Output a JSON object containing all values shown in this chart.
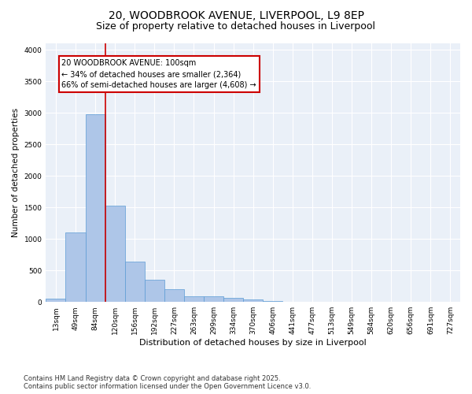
{
  "title": "20, WOODBROOK AVENUE, LIVERPOOL, L9 8EP",
  "subtitle": "Size of property relative to detached houses in Liverpool",
  "xlabel": "Distribution of detached houses by size in Liverpool",
  "ylabel": "Number of detached properties",
  "categories": [
    "13sqm",
    "49sqm",
    "84sqm",
    "120sqm",
    "156sqm",
    "192sqm",
    "227sqm",
    "263sqm",
    "299sqm",
    "334sqm",
    "370sqm",
    "406sqm",
    "441sqm",
    "477sqm",
    "513sqm",
    "549sqm",
    "584sqm",
    "620sqm",
    "656sqm",
    "691sqm",
    "727sqm"
  ],
  "values": [
    55,
    1100,
    2980,
    1530,
    640,
    350,
    205,
    95,
    90,
    60,
    35,
    15,
    5,
    0,
    0,
    0,
    0,
    0,
    0,
    0,
    0
  ],
  "bar_color": "#aec6e8",
  "bar_edge_color": "#5b9bd5",
  "property_line_color": "#cc0000",
  "annotation_text": "20 WOODBROOK AVENUE: 100sqm\n← 34% of detached houses are smaller (2,364)\n66% of semi-detached houses are larger (4,608) →",
  "annotation_box_color": "#cc0000",
  "annotation_facecolor": "white",
  "ylim": [
    0,
    4100
  ],
  "yticks": [
    0,
    500,
    1000,
    1500,
    2000,
    2500,
    3000,
    3500,
    4000
  ],
  "background_color": "#eaf0f8",
  "grid_color": "#ffffff",
  "footer_line1": "Contains HM Land Registry data © Crown copyright and database right 2025.",
  "footer_line2": "Contains public sector information licensed under the Open Government Licence v3.0.",
  "title_fontsize": 10,
  "subtitle_fontsize": 9,
  "xlabel_fontsize": 8,
  "ylabel_fontsize": 7.5,
  "tick_fontsize": 6.5,
  "annotation_fontsize": 7,
  "footer_fontsize": 6
}
